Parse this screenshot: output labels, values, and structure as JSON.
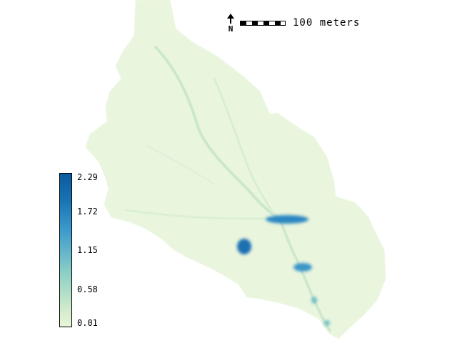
{
  "scale": {
    "label": "100 meters"
  },
  "north_arrow": {
    "icon": "north-arrow-icon",
    "letter": "N"
  },
  "legend": {
    "ticks": [
      "2.29",
      "1.72",
      "1.15",
      "0.58",
      "0.01"
    ],
    "colors": [
      "#0b5a9e",
      "#1a74b4",
      "#3f9ccb",
      "#8ccfc6",
      "#eaf5d8"
    ]
  },
  "colors": {
    "basin_fill": "#eaf5de",
    "channel": "#cfe9cd",
    "pond": "#1e78b8"
  }
}
